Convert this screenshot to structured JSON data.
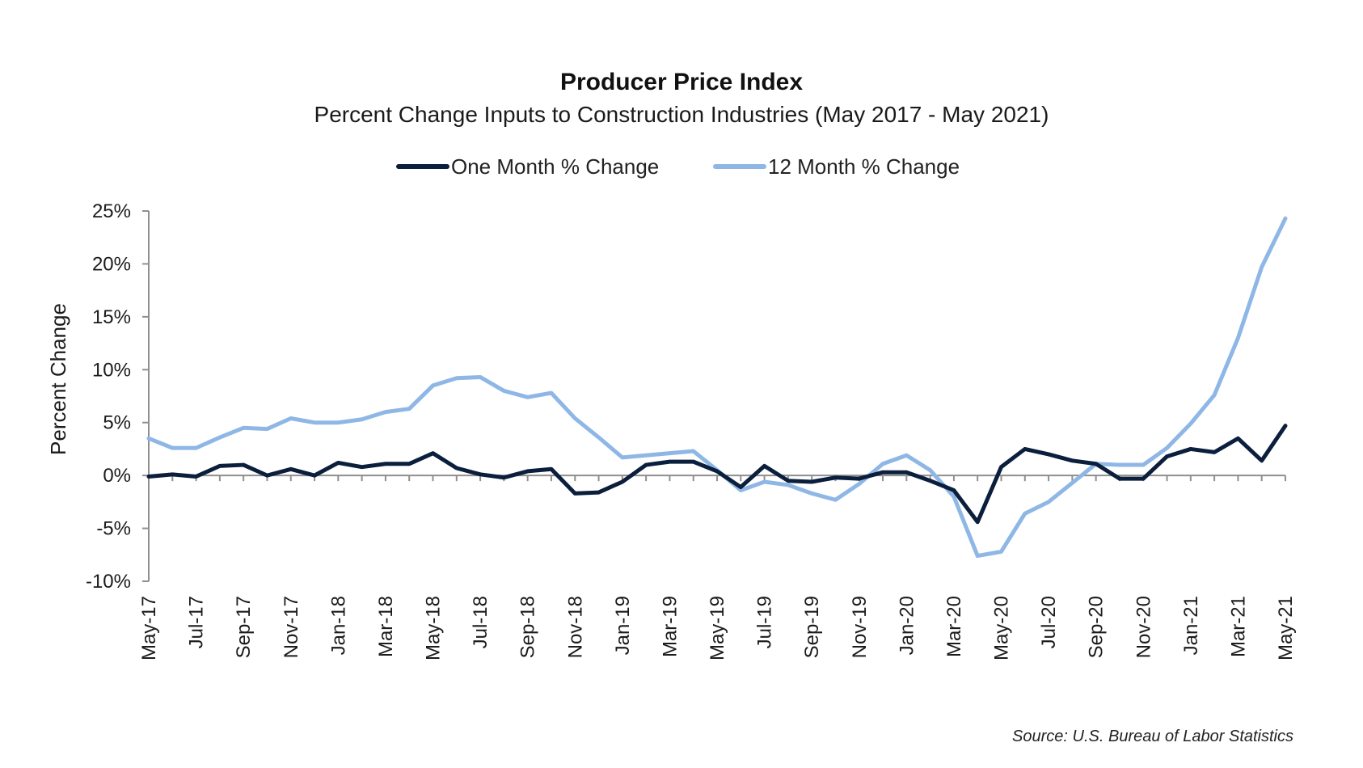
{
  "chart_data": {
    "type": "line",
    "title": "Producer Price Index",
    "subtitle": "Percent Change Inputs to Construction Industries (May 2017 - May 2021)",
    "ylabel": "Percent Change",
    "xlabel": "",
    "ylim": [
      -10,
      25
    ],
    "yticks": [
      25,
      20,
      15,
      10,
      5,
      0,
      -5,
      -10
    ],
    "ytick_labels": [
      "25%",
      "20%",
      "15%",
      "10%",
      "5%",
      "0%",
      "-5%",
      "-10%"
    ],
    "x": [
      "May-17",
      "Jun-17",
      "Jul-17",
      "Aug-17",
      "Sep-17",
      "Oct-17",
      "Nov-17",
      "Dec-17",
      "Jan-18",
      "Feb-18",
      "Mar-18",
      "Apr-18",
      "May-18",
      "Jun-18",
      "Jul-18",
      "Aug-18",
      "Sep-18",
      "Oct-18",
      "Nov-18",
      "Dec-18",
      "Jan-19",
      "Feb-19",
      "Mar-19",
      "Apr-19",
      "May-19",
      "Jun-19",
      "Jul-19",
      "Aug-19",
      "Sep-19",
      "Oct-19",
      "Nov-19",
      "Dec-19",
      "Jan-20",
      "Feb-20",
      "Mar-20",
      "Apr-20",
      "May-20",
      "Jun-20",
      "Jul-20",
      "Aug-20",
      "Sep-20",
      "Oct-20",
      "Nov-20",
      "Dec-20",
      "Jan-21",
      "Feb-21",
      "Mar-21",
      "Apr-21",
      "May-21"
    ],
    "x_tick_labels": [
      "May-17",
      "Jul-17",
      "Sep-17",
      "Nov-17",
      "Jan-18",
      "Mar-18",
      "May-18",
      "Jul-18",
      "Sep-18",
      "Nov-18",
      "Jan-19",
      "Mar-19",
      "May-19",
      "Jul-19",
      "Sep-19",
      "Nov-19",
      "Jan-20",
      "Mar-20",
      "May-20",
      "Jul-20",
      "Sep-20",
      "Nov-20",
      "Jan-21",
      "Mar-21",
      "May-21"
    ],
    "legend_position": "top-center",
    "grid": false,
    "series": [
      {
        "name": "One Month % Change",
        "color": "#0b1f3d",
        "values": [
          -0.1,
          0.1,
          -0.1,
          0.9,
          1.0,
          0.0,
          0.6,
          0.0,
          1.2,
          0.8,
          1.1,
          1.1,
          2.1,
          0.7,
          0.1,
          -0.2,
          0.4,
          0.6,
          -1.7,
          -1.6,
          -0.6,
          1.0,
          1.3,
          1.3,
          0.4,
          -1.1,
          0.9,
          -0.5,
          -0.6,
          -0.2,
          -0.3,
          0.3,
          0.3,
          -0.5,
          -1.4,
          -4.4,
          0.8,
          2.5,
          2.0,
          1.4,
          1.1,
          -0.3,
          -0.3,
          1.8,
          2.5,
          2.2,
          3.5,
          1.4,
          4.7
        ]
      },
      {
        "name": "12 Month % Change",
        "color": "#8fb7e6",
        "values": [
          3.5,
          2.6,
          2.6,
          3.6,
          4.5,
          4.4,
          5.4,
          5.0,
          5.0,
          5.3,
          6.0,
          6.3,
          8.5,
          9.2,
          9.3,
          8.0,
          7.4,
          7.8,
          5.4,
          3.6,
          1.7,
          1.9,
          2.1,
          2.3,
          0.5,
          -1.4,
          -0.6,
          -0.9,
          -1.7,
          -2.3,
          -0.8,
          1.1,
          1.9,
          0.5,
          -2.0,
          -7.6,
          -7.2,
          -3.6,
          -2.5,
          -0.7,
          1.1,
          1.0,
          1.0,
          2.6,
          4.9,
          7.6,
          13.0,
          19.7,
          24.3
        ]
      }
    ]
  },
  "source_note": "Source: U.S. Bureau of Labor Statistics"
}
